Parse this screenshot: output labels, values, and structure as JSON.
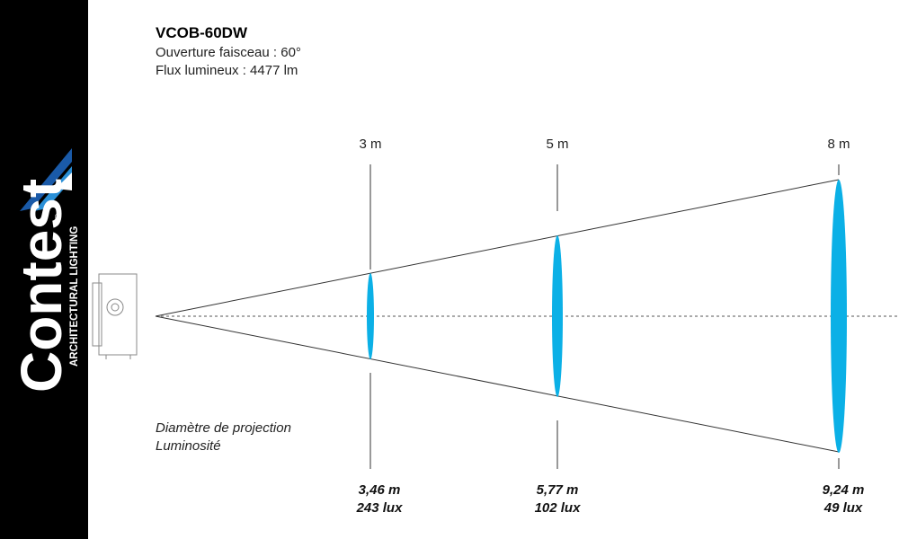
{
  "brand": {
    "name": "Contest",
    "registered": "®",
    "tagline": "ARCHITECTURAL LIGHTING"
  },
  "header": {
    "title": "VCOB-60DW",
    "lines": [
      "Ouverture faisceau : 60°",
      "Flux lumineux : 4477 lm"
    ]
  },
  "legend": [
    "Diamètre de projection",
    "Luminosité"
  ],
  "distances": [
    {
      "distance": "3 m",
      "diameter": "3,46 m",
      "illuminance": "243 lux"
    },
    {
      "distance": "5 m",
      "diameter": "5,77 m",
      "illuminance": "102 lux"
    },
    {
      "distance": "8 m",
      "diameter": "9,24 m",
      "illuminance": "49 lux"
    }
  ]
}
